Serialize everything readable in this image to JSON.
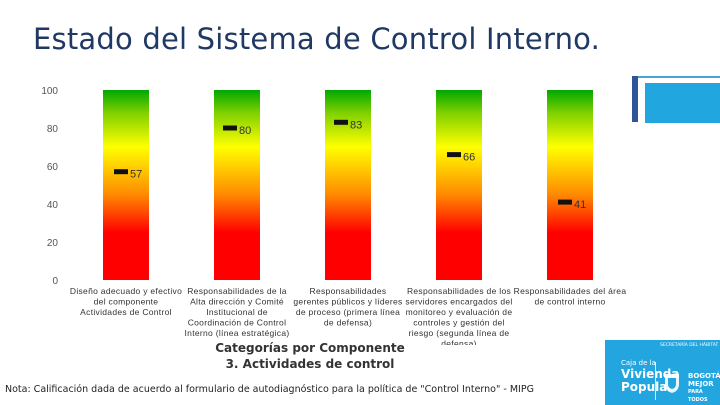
{
  "slide": {
    "title": "Estado del Sistema de Control Interno.",
    "note": "Nota: Calificación dada de acuerdo al formulario de autodiagnóstico para la política de \"Control Interno\" - MIPG"
  },
  "logo": {
    "line1": "Caja de la",
    "line2": "Vivienda",
    "line3": "Popular",
    "bogota_line1": "BOGOTÁ",
    "bogota_line2": "MEJOR",
    "bogota_line3": "PARA TODOS",
    "secretaria": "SECRETARÍA DEL HÁBITAT"
  },
  "chart_data": {
    "type": "bar",
    "title": "",
    "xlabel": "Categorías por Componente\n3. Actividades de control",
    "ylabel": "",
    "ylim": [
      0,
      100
    ],
    "yticks": [
      0,
      20,
      40,
      60,
      80,
      100
    ],
    "grid": false,
    "categories": [
      "Diseño adecuado y efectivo del componente Actividades de Control",
      "Responsabilidades de la Alta dirección y Comité Institucional de Coordinación de Control Interno (línea estratégica)",
      "Responsabilidades gerentes públicos y líderes de proceso (primera línea de defensa)",
      "Responsabilidades de los servidores encargados del monitoreo y evaluación de controles y gestión del riesgo (segunda línea de defensa)",
      "Responsabilidades del área de control interno"
    ],
    "category_lines": [
      [
        "Diseño adecuado y efectivo",
        "del componente",
        "Actividades de Control"
      ],
      [
        "Responsabilidades de la",
        "Alta dirección y Comité",
        "Institucional de",
        "Coordinación de Control",
        "Interno (línea estratégica)"
      ],
      [
        "Responsabilidades",
        "gerentes públicos y líderes",
        "de proceso (primera línea",
        "de defensa)"
      ],
      [
        "Responsabilidades de los",
        "servidores encargados del",
        "monitoreo y evaluación de",
        "controles y gestión del",
        "riesgo (segunda línea de",
        "defensa)"
      ],
      [
        "Responsabilidades del área",
        "de control interno"
      ]
    ],
    "values": [
      57,
      80,
      83,
      66,
      41
    ],
    "data_labels": [
      "57",
      "80",
      "83",
      "66",
      "41"
    ],
    "bar_gradient_colors": [
      "#00a800",
      "#ffff00",
      "#ff0000"
    ]
  }
}
